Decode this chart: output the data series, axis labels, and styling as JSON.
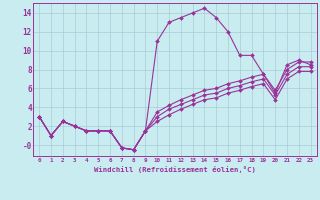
{
  "xlabel": "Windchill (Refroidissement éolien,°C)",
  "bg_color": "#c8ecf0",
  "grid_color": "#aaccd8",
  "line_color": "#993399",
  "xlim": [
    -0.5,
    23.5
  ],
  "ylim": [
    -1.2,
    15.0
  ],
  "xticks": [
    0,
    1,
    2,
    3,
    4,
    5,
    6,
    7,
    8,
    9,
    10,
    11,
    12,
    13,
    14,
    15,
    16,
    17,
    18,
    19,
    20,
    21,
    22,
    23
  ],
  "ytick_vals": [
    0,
    2,
    4,
    6,
    8,
    10,
    12,
    14
  ],
  "ytick_labels": [
    "-0",
    "2",
    "4",
    "6",
    "8",
    "10",
    "12",
    "14"
  ],
  "series": [
    [
      3.0,
      1.0,
      2.5,
      2.0,
      1.5,
      1.5,
      1.5,
      -0.3,
      -0.5,
      1.5,
      11.0,
      13.0,
      13.5,
      14.0,
      14.5,
      13.5,
      12.0,
      9.5,
      9.5,
      7.5,
      5.5,
      8.5,
      9.0,
      8.5
    ],
    [
      3.0,
      1.0,
      2.5,
      2.0,
      1.5,
      1.5,
      1.5,
      -0.3,
      -0.5,
      1.5,
      3.5,
      4.2,
      4.8,
      5.3,
      5.8,
      6.0,
      6.5,
      6.8,
      7.2,
      7.5,
      5.8,
      8.0,
      8.8,
      8.8
    ],
    [
      3.0,
      1.0,
      2.5,
      2.0,
      1.5,
      1.5,
      1.5,
      -0.3,
      -0.5,
      1.5,
      3.0,
      3.8,
      4.3,
      4.8,
      5.3,
      5.5,
      6.0,
      6.3,
      6.7,
      7.0,
      5.3,
      7.5,
      8.3,
      8.3
    ],
    [
      3.0,
      1.0,
      2.5,
      2.0,
      1.5,
      1.5,
      1.5,
      -0.3,
      -0.5,
      1.5,
      2.5,
      3.2,
      3.8,
      4.3,
      4.8,
      5.0,
      5.5,
      5.8,
      6.2,
      6.5,
      4.8,
      7.0,
      7.8,
      7.8
    ]
  ]
}
